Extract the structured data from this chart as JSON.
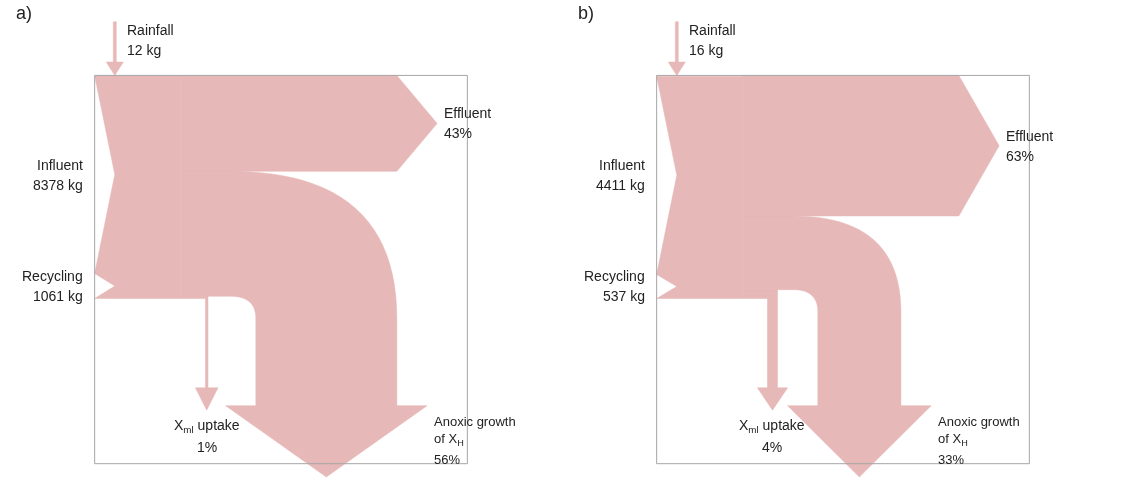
{
  "chart_data": [
    {
      "type": "other",
      "title": "a)",
      "categories": [
        "Rainfall",
        "Influent",
        "Recycling",
        "Effluent",
        "Anoxic growth\nof X$_{H}$",
        "X$_{ml}$ uptake"
      ],
      "series": [
        {
          "color": "#e6b8b7",
          "values": [
            12,
            8378,
            1061,
            null,
            null,
            null
          ],
          "value_labels": [
            "12 kg",
            "8378 kg",
            "1061 kg",
            null,
            null,
            null
          ]
        },
        {
          "color": "#e6b8b7",
          "values": [
            null,
            null,
            null,
            43,
            56,
            1
          ],
          "value_labels": [
            null,
            null,
            null,
            "43%",
            "56%",
            "1%"
          ]
        }
      ]
    },
    {
      "type": "other",
      "title": "b)",
      "categories": [
        "Rainfall",
        "Influent",
        "Recycling",
        "Effluent",
        "Anoxic growth\nof X$_{H}$",
        "X$_{ml}$ uptake"
      ],
      "series": [
        {
          "color": "#e6b8b7",
          "values": [
            16,
            4411,
            537,
            null,
            null,
            null
          ],
          "value_labels": [
            "16 kg",
            "4411 kg",
            "537 kg",
            null,
            null,
            null
          ]
        },
        {
          "color": "#e6b8b7",
          "values": [
            null,
            null,
            null,
            63,
            33,
            4
          ],
          "value_labels": [
            null,
            null,
            null,
            "63%",
            "33%",
            "4%"
          ]
        }
      ]
    }
  ]
}
